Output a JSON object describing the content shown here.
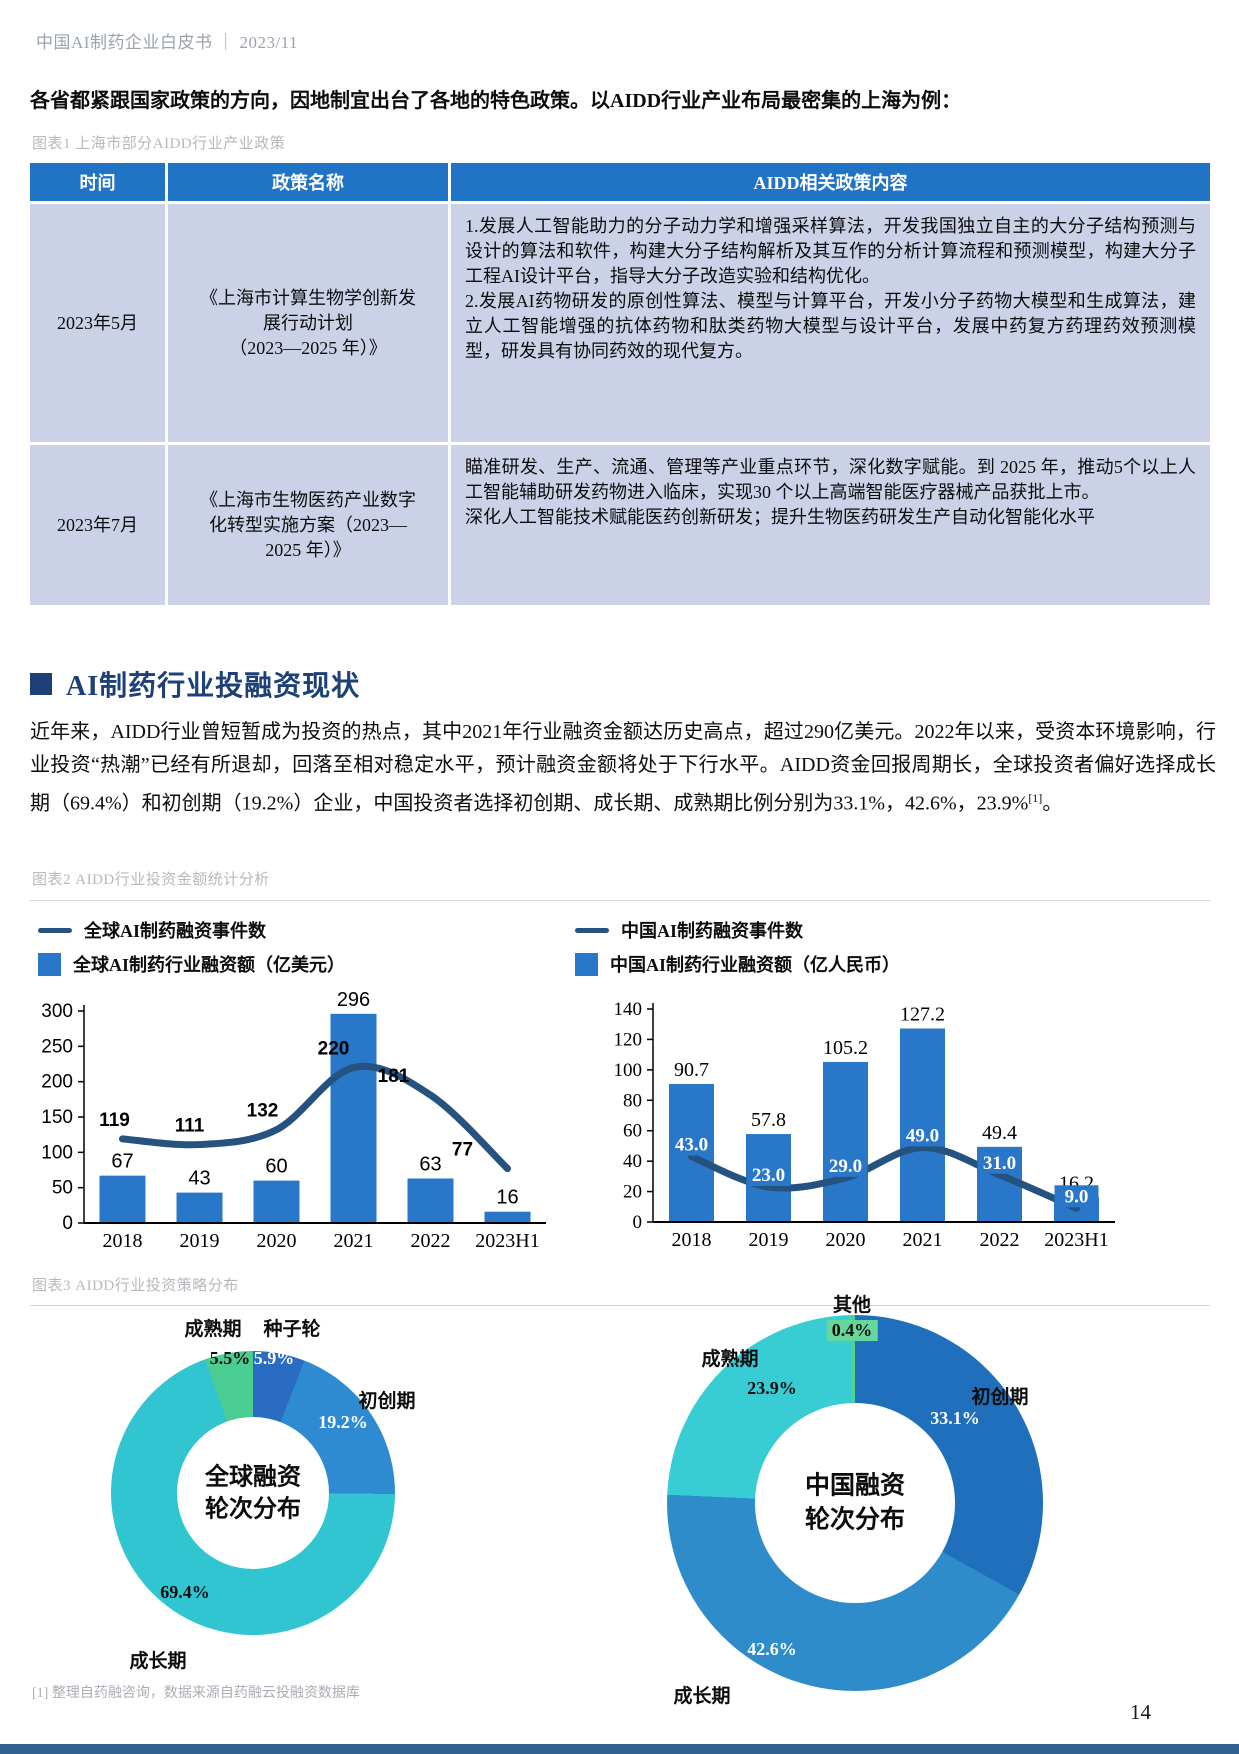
{
  "page": {
    "header_text": "中国AI制药企业白皮书 ｜ 2023/11",
    "intro": "各省都紧跟国家政策的方向，因地制宜出台了各地的特色政策。以AIDD行业产业布局最密集的上海为例：",
    "footnote": "[1] 整理自药融咨询，数据来源自药融云投融资数据库",
    "page_number": "14"
  },
  "table1": {
    "caption": "图表1 上海市部分AIDD行业产业政策",
    "headers": [
      "时间",
      "政策名称",
      "AIDD相关政策内容"
    ],
    "rows": [
      {
        "time": "2023年5月",
        "name": "《上海市计算生物学创新发\n展行动计划\n（2023—2025 年）》",
        "content": [
          "1.发展人工智能助力的分子动力学和增强采样算法，开发我国独立自主的大分子结构预测与设计的算法和软件，构建大分子结构解析及其互作的分析计算流程和预测模型，构建大分子工程AI设计平台，指导大分子改造实验和结构优化。",
          "2.发展AI药物研发的原创性算法、模型与计算平台，开发小分子药物大模型和生成算法，建立人工智能增强的抗体药物和肽类药物大模型与设计平台，发展中药复方药理药效预测模型，研发具有协同药效的现代复方。"
        ]
      },
      {
        "time": "2023年7月",
        "name": "《上海市生物医药产业数字\n化转型实施方案（2023—\n2025 年）》",
        "content": [
          "瞄准研发、生产、流通、管理等产业重点环节，深化数字赋能。到 2025 年，推动5个以上人工智能辅助研发药物进入临床，实现30 个以上高端智能医疗器械产品获批上市。",
          "深化人工智能技术赋能医药创新研发；提升生物医药研发生产自动化智能化水平"
        ]
      }
    ]
  },
  "section": {
    "title": "AI制药行业投融资现状",
    "paragraph": "近年来，AIDD行业曾短暂成为投资的热点，其中2021年行业融资金额达历史高点，超过290亿美元。2022年以来，受资本环境影响，行业投资“热潮”已经有所退却，回落至相对稳定水平，预计融资金额将处于下行水平。AIDD资金回报周期长，全球投资者偏好选择成长期（69.4%）和初创期（19.2%）企业，中国投资者选择初创期、成长期、成熟期比例分别为33.1%，42.6%，23.9%",
    "footnote_ref": "[1]",
    "paragraph_end": "。"
  },
  "figures": {
    "fig2_caption": "图表2 AIDD行业投资金额统计分析",
    "fig3_caption": "图表3 AIDD行业投资策略分布"
  },
  "chart_data": [
    {
      "id": "global-funding",
      "type": "bar+line",
      "legend_line": "全球AI制药融资事件数",
      "legend_bar": "全球AI制药行业融资额（亿美元）",
      "categories": [
        "2018",
        "2019",
        "2020",
        "2021",
        "2022",
        "2023H1"
      ],
      "bar_values": [
        67,
        43,
        60,
        296,
        63,
        16
      ],
      "bar_labels": [
        "67",
        "43",
        "60",
        "296",
        "63",
        "16"
      ],
      "line_values": [
        119,
        111,
        132,
        220,
        181,
        77
      ],
      "line_labels": [
        "119",
        "111",
        "132",
        "220",
        "181",
        "77"
      ],
      "ylim": [
        0,
        300
      ],
      "ytick_step": 50,
      "bar_color": "#2877C8",
      "line_color": "#25527E"
    },
    {
      "id": "china-funding",
      "type": "bar+line",
      "legend_line": "中国AI制药融资事件数",
      "legend_bar": "中国AI制药行业融资额（亿人民币）",
      "categories": [
        "2018",
        "2019",
        "2020",
        "2021",
        "2022",
        "2023H1"
      ],
      "bar_values": [
        90.7,
        57.8,
        105.2,
        127.2,
        49.4,
        16.2
      ],
      "bar_labels": [
        "90.7",
        "57.8",
        "105.2",
        "127.2",
        "49.4",
        "16.2"
      ],
      "line_values": [
        43,
        23,
        29,
        49,
        31,
        9
      ],
      "line_labels": [
        "43.0",
        "23.0",
        "29.0",
        "49.0",
        "31.0",
        "9.0"
      ],
      "ylim": [
        0,
        140
      ],
      "ytick_step": 20,
      "bar_color": "#2877C8",
      "line_color": "#25527E"
    },
    {
      "id": "global-rounds",
      "type": "pie",
      "center_line1": "全球融资",
      "center_line2": "轮次分布",
      "slices": [
        {
          "label": "种子轮",
          "pct": 5.9,
          "pct_label": "5.9%",
          "color": "#2A6CC2"
        },
        {
          "label": "初创期",
          "pct": 19.2,
          "pct_label": "19.2%",
          "color": "#2E8BD2"
        },
        {
          "label": "成长期",
          "pct": 69.4,
          "pct_label": "69.4%",
          "color": "#31C5D2"
        },
        {
          "label": "成熟期",
          "pct": 5.5,
          "pct_label": "5.5%",
          "color": "#4BCD92"
        }
      ]
    },
    {
      "id": "china-rounds",
      "type": "pie",
      "center_line1": "中国融资",
      "center_line2": "轮次分布",
      "slices": [
        {
          "label": "初创期",
          "pct": 33.1,
          "pct_label": "33.1%",
          "color": "#1F6FBC"
        },
        {
          "label": "成长期",
          "pct": 42.6,
          "pct_label": "42.6%",
          "color": "#2E8CCA"
        },
        {
          "label": "成熟期",
          "pct": 23.9,
          "pct_label": "23.9%",
          "color": "#38CDD5"
        },
        {
          "label": "其他",
          "pct": 0.4,
          "pct_label": "0.4%",
          "color": "#53D190"
        }
      ]
    }
  ]
}
